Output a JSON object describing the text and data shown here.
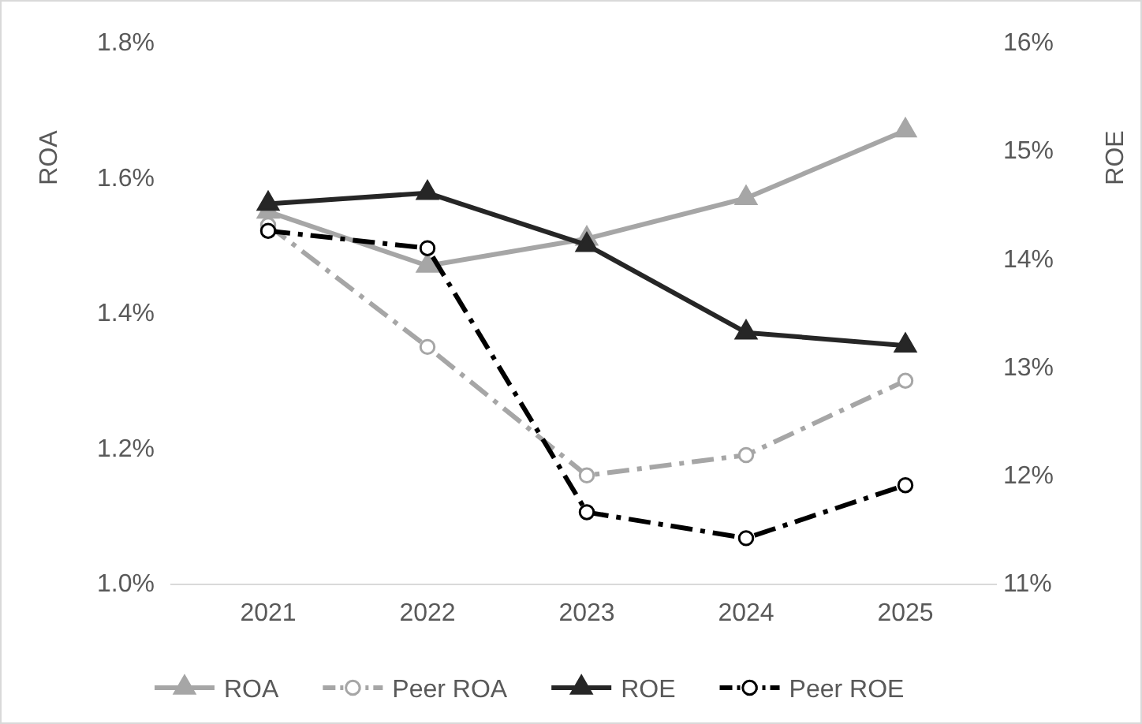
{
  "chart_data": {
    "type": "line",
    "ylabel": "ROA",
    "y2label": "ROE",
    "categories": [
      "2021",
      "2022",
      "2023",
      "2024",
      "2025"
    ],
    "ylim": [
      1.0,
      1.8
    ],
    "yticks": [
      {
        "value": 1.0,
        "label": "1.0%"
      },
      {
        "value": 1.2,
        "label": "1.2%"
      },
      {
        "value": 1.4,
        "label": "1.4%"
      },
      {
        "value": 1.6,
        "label": "1.6%"
      },
      {
        "value": 1.8,
        "label": "1.8%"
      }
    ],
    "y2lim": [
      11,
      16
    ],
    "y2ticks": [
      {
        "value": 11,
        "label": "11%"
      },
      {
        "value": 12,
        "label": "12%"
      },
      {
        "value": 13,
        "label": "13%"
      },
      {
        "value": 14,
        "label": "14%"
      },
      {
        "value": 15,
        "label": "15%"
      },
      {
        "value": 16,
        "label": "16%"
      }
    ],
    "grid": false,
    "legend": "bottom",
    "series": [
      {
        "name": "ROA",
        "color": "#a6a6a6",
        "values": [
          1.55,
          1.47,
          1.51,
          1.57,
          1.67
        ],
        "marker": "triangle",
        "line_style": "solid"
      },
      {
        "name": "Peer ROA",
        "color": "#a6a6a6",
        "values": [
          1.53,
          1.35,
          1.16,
          1.19,
          1.3
        ],
        "marker": "circle",
        "line_style": "dashed"
      },
      {
        "name": "ROE",
        "color": "#262626",
        "values": [
          14.51,
          14.61,
          14.13,
          13.32,
          13.2
        ],
        "marker": "triangle",
        "line_style": "solid",
        "axis": "y2"
      },
      {
        "name": "Peer ROE",
        "color": "#000000",
        "values": [
          14.26,
          14.1,
          11.66,
          11.42,
          11.91
        ],
        "marker": "circle",
        "line_style": "dashed",
        "axis": "y2"
      }
    ]
  }
}
